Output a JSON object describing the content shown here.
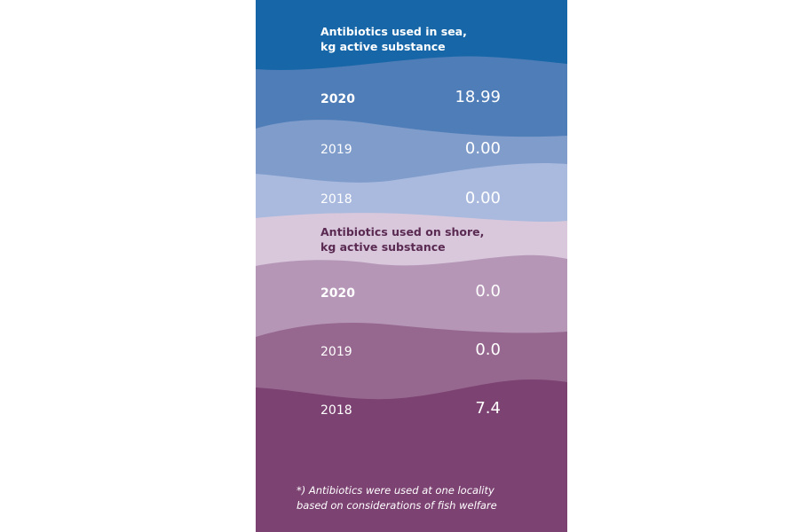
{
  "colors": {
    "sea_title_bg": "#1767a8",
    "sea_2020": "#4f7db7",
    "sea_2019": "#7f9ccb",
    "sea_2018": "#a9bade",
    "shore_title_bg": "#d9c8dc",
    "shore_2020": "#b596b7",
    "shore_2019": "#97688f",
    "shore_2018": "#7c4272",
    "shore_title_text": "#5a2a52"
  },
  "sea": {
    "title_line1": "Antibiotics used in sea,",
    "title_line2": "kg active substance",
    "rows": [
      {
        "year": "2020",
        "value": "18.99"
      },
      {
        "year": "2019",
        "value": "0.00"
      },
      {
        "year": "2018",
        "value": "0.00"
      }
    ]
  },
  "shore": {
    "title_line1": "Antibiotics used on shore,",
    "title_line2": "kg active substance",
    "rows": [
      {
        "year": "2020",
        "value": "0.0"
      },
      {
        "year": "2019",
        "value": "0.0"
      },
      {
        "year": "2018",
        "value": "7.4"
      }
    ]
  },
  "footnote_line1": "*) Antibiotics were used at one locality",
  "footnote_line2": "based on considerations of fish welfare"
}
